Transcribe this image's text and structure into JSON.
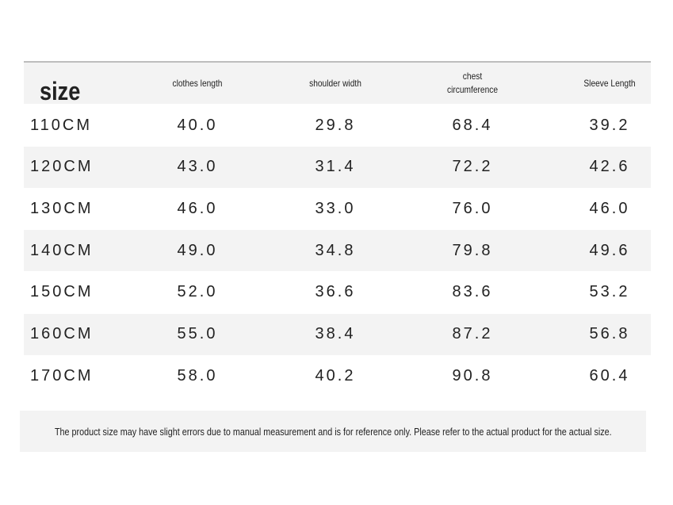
{
  "table": {
    "header": [
      "size",
      "clothes length",
      "shoulder width",
      "chest circumference",
      "Sleeve Length"
    ],
    "rows": [
      [
        "110CM",
        "40.0",
        "29.8",
        "68.4",
        "39.2"
      ],
      [
        "120CM",
        "43.0",
        "31.4",
        "72.2",
        "42.6"
      ],
      [
        "130CM",
        "46.0",
        "33.0",
        "76.0",
        "46.0"
      ],
      [
        "140CM",
        "49.0",
        "34.8",
        "79.8",
        "49.6"
      ],
      [
        "150CM",
        "52.0",
        "36.6",
        "83.6",
        "53.2"
      ],
      [
        "160CM",
        "55.0",
        "38.4",
        "87.2",
        "56.8"
      ],
      [
        "170CM",
        "58.0",
        "40.2",
        "90.8",
        "60.4"
      ]
    ]
  },
  "note": "The product size may have slight errors due to manual measurement and is for reference only. Please refer to the actual product for the actual size."
}
